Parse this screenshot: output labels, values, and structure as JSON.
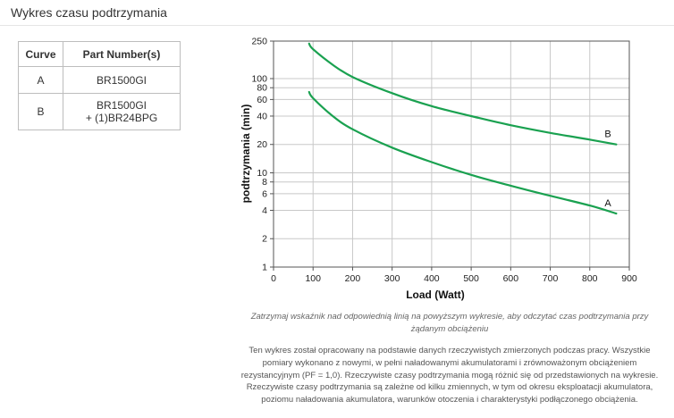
{
  "page": {
    "section_title": "Wykres czasu podtrzymania"
  },
  "parts_table": {
    "headers": [
      "Curve",
      "Part Number(s)"
    ],
    "rows": [
      {
        "curve": "A",
        "parts": [
          "BR1500GI"
        ]
      },
      {
        "curve": "B",
        "parts": [
          "BR1500GI",
          "+ (1)BR24BPG"
        ]
      }
    ]
  },
  "chart_data": {
    "type": "line",
    "xlabel": "Load (Watt)",
    "ylabel": "podtrzymania (min)",
    "xlim": [
      0,
      900
    ],
    "ylim": [
      1,
      250
    ],
    "y_scale": "log",
    "x_ticks": [
      "0",
      "100",
      "200",
      "300",
      "400",
      "500",
      "600",
      "700",
      "800",
      "900"
    ],
    "y_ticks": [
      {
        "value": 1,
        "label": "1"
      },
      {
        "value": 2,
        "label": "2"
      },
      {
        "value": 4,
        "label": "4"
      },
      {
        "value": 6,
        "label": "6"
      },
      {
        "value": 8,
        "label": "8"
      },
      {
        "value": 10,
        "label": "10"
      },
      {
        "value": 20,
        "label": "20"
      },
      {
        "value": 40,
        "label": "40"
      },
      {
        "value": 60,
        "label": "60"
      },
      {
        "value": 80,
        "label": "80"
      },
      {
        "value": 100,
        "label": "100"
      },
      {
        "value": 250,
        "label": "250"
      }
    ],
    "grid": true,
    "line_color": "#1aa150",
    "series": [
      {
        "name": "A",
        "points": [
          [
            90,
            72
          ],
          [
            100,
            62
          ],
          [
            150,
            40
          ],
          [
            200,
            29
          ],
          [
            300,
            18.5
          ],
          [
            400,
            13
          ],
          [
            500,
            9.5
          ],
          [
            600,
            7.3
          ],
          [
            700,
            5.7
          ],
          [
            800,
            4.5
          ],
          [
            867,
            3.7
          ]
        ]
      },
      {
        "name": "B",
        "points": [
          [
            90,
            235
          ],
          [
            100,
            205
          ],
          [
            150,
            140
          ],
          [
            200,
            104
          ],
          [
            300,
            70
          ],
          [
            400,
            51
          ],
          [
            500,
            40
          ],
          [
            600,
            32
          ],
          [
            700,
            26.5
          ],
          [
            800,
            22.5
          ],
          [
            867,
            20
          ]
        ]
      }
    ]
  },
  "captions": {
    "instruction": "Zatrzymaj wskaźnik nad odpowiednią linią na powyższym wykresie, aby odczytać czas podtrzymania przy żądanym obciążeniu",
    "note": "Ten wykres został opracowany na podstawie danych rzeczywistych zmierzonych podczas pracy. Wszystkie pomiary wykonano z nowymi, w pełni naładowanymi akumulatorami i zrównoważonym obciążeniem rezystancyjnym (PF = 1,0). Rzeczywiste czasy podtrzymania mogą różnić się od przedstawionych na wykresie. Rzeczywiste czasy podtrzymania są zależne od kilku zmiennych, w tym od okresu eksploatacji akumulatora, poziomu naładowania akumulatora, warunków otoczenia i charakterystyki podłączonego obciążenia."
  }
}
